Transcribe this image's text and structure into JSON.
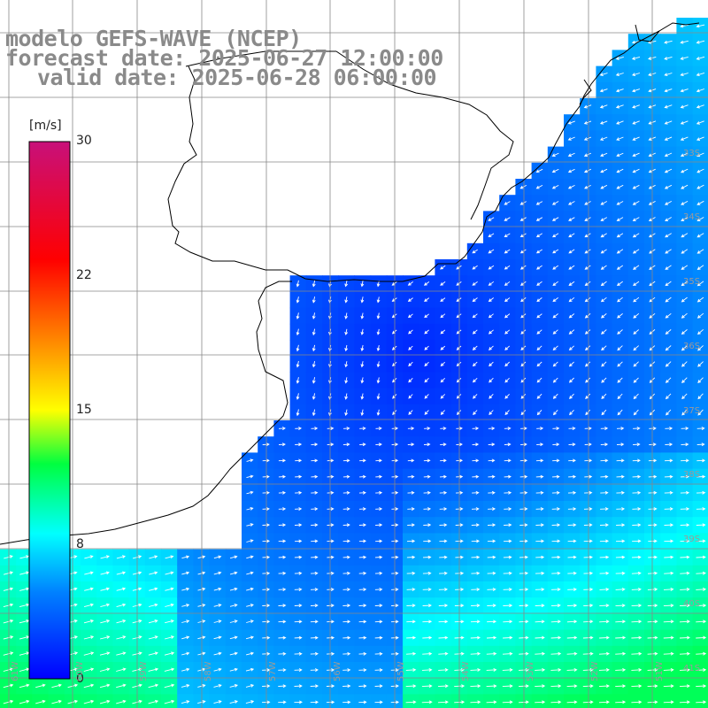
{
  "header": {
    "line1": "modelo GEFS-WAVE (NCEP)",
    "line2": "forecast date: 2025-06-27 12:00:00",
    "line3": "valid date: 2025-06-28 06:00:00"
  },
  "colorbar": {
    "unit": "[m/s]",
    "ticks": [
      "30",
      "22",
      "15",
      "8",
      "0"
    ],
    "stops": [
      {
        "t": 0.0,
        "color": "#0000ff"
      },
      {
        "t": 0.16,
        "color": "#0080ff"
      },
      {
        "t": 0.27,
        "color": "#00ffff"
      },
      {
        "t": 0.4,
        "color": "#00ff40"
      },
      {
        "t": 0.5,
        "color": "#ffff00"
      },
      {
        "t": 0.62,
        "color": "#ff9000"
      },
      {
        "t": 0.78,
        "color": "#ff0000"
      },
      {
        "t": 1.0,
        "color": "#c8107a"
      }
    ]
  },
  "lat_labels": [
    "33S",
    "34S",
    "35S",
    "36S",
    "37S",
    "38S",
    "39S",
    "40S",
    "41S"
  ],
  "lon_labels": [
    "61W",
    "60W",
    "59W",
    "58W",
    "57W",
    "56W",
    "55W",
    "54W",
    "53W",
    "52W",
    "51W"
  ],
  "colors": {
    "land": "#ffffff",
    "coast": "#000000",
    "grid": "#888888",
    "arrow": "#ffffff",
    "title": "#8a8a8a"
  }
}
